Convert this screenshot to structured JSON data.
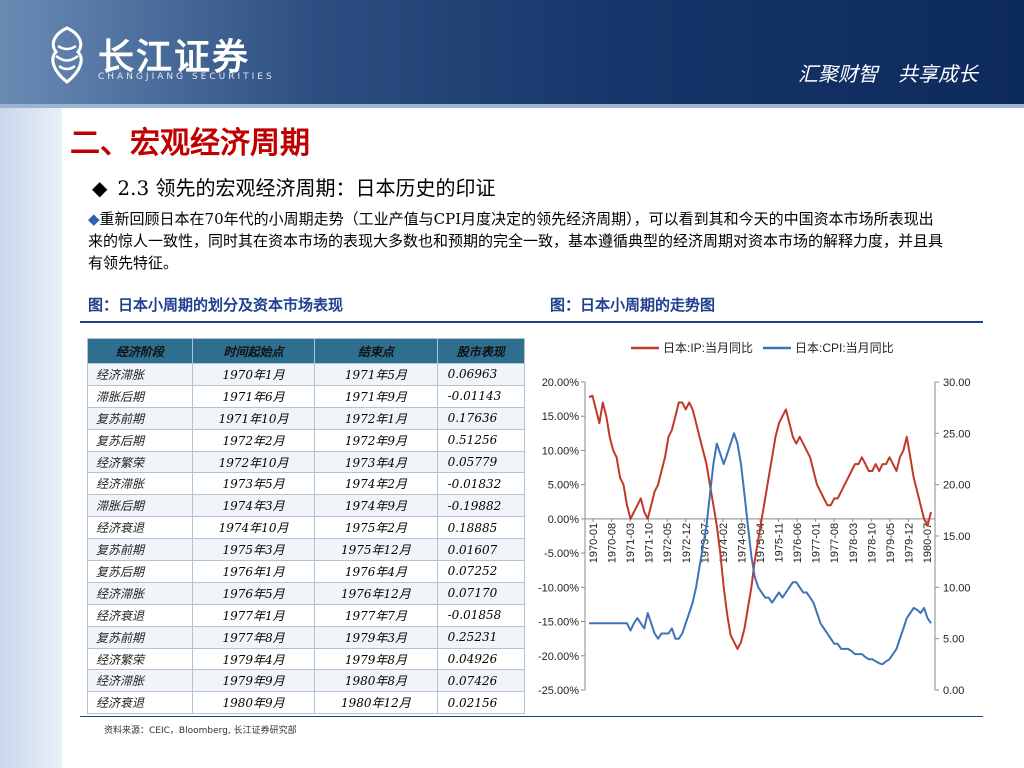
{
  "header": {
    "logo_text": "长江证券",
    "logo_sub": "CHANGJIANG SECURITIES",
    "slogan": "汇聚财智　共享成长"
  },
  "section_title": "二、宏观经济周期",
  "subtitle": {
    "bullet": "◆",
    "text": "2.3 领先的宏观经济周期：日本历史的印证"
  },
  "paragraph": {
    "bullet": "◆",
    "text": "重新回顾日本在70年代的小周期走势（工业产值与CPI月度决定的领先经济周期），可以看到其和今天的中国资本市场所表现出来的惊人一致性，同时其在资本市场的表现大多数也和预期的完全一致，基本遵循典型的经济周期对资本市场的解释力度，并且具有领先特征。"
  },
  "captions": {
    "left": "图：日本小周期的划分及资本市场表现",
    "right": "图：日本小周期的走势图"
  },
  "table": {
    "headers": [
      "经济阶段",
      "时间起始点",
      "结束点",
      "股市表现"
    ],
    "rows": [
      [
        "经济滞胀",
        "1970年1月",
        "1971年5月",
        "0.06963"
      ],
      [
        "滞胀后期",
        "1971年6月",
        "1971年9月",
        "-0.01143"
      ],
      [
        "复苏前期",
        "1971年10月",
        "1972年1月",
        "0.17636"
      ],
      [
        "复苏后期",
        "1972年2月",
        "1972年9月",
        "0.51256"
      ],
      [
        "经济繁荣",
        "1972年10月",
        "1973年4月",
        "0.05779"
      ],
      [
        "经济滞胀",
        "1973年5月",
        "1974年2月",
        "-0.01832"
      ],
      [
        "滞胀后期",
        "1974年3月",
        "1974年9月",
        "-0.19882"
      ],
      [
        "经济衰退",
        "1974年10月",
        "1975年2月",
        "0.18885"
      ],
      [
        "复苏前期",
        "1975年3月",
        "1975年12月",
        "0.01607"
      ],
      [
        "复苏后期",
        "1976年1月",
        "1976年4月",
        "0.07252"
      ],
      [
        "经济滞胀",
        "1976年5月",
        "1976年12月",
        "0.07170"
      ],
      [
        "经济衰退",
        "1977年1月",
        "1977年7月",
        "-0.01858"
      ],
      [
        "复苏前期",
        "1977年8月",
        "1979年3月",
        "0.25231"
      ],
      [
        "经济繁荣",
        "1979年4月",
        "1979年8月",
        "0.04926"
      ],
      [
        "经济滞胀",
        "1979年9月",
        "1980年8月",
        "0.07426"
      ],
      [
        "经济衰退",
        "1980年9月",
        "1980年12月",
        "0.02156"
      ]
    ]
  },
  "source": "资料来源：CEIC，Bloomberg, 长江证券研究部",
  "chart_data": {
    "type": "line",
    "title": "",
    "series": [
      {
        "name": "日本:IP:当月同比",
        "axis": "left",
        "color": "#c0392b",
        "values": [
          17.8,
          18,
          16,
          14,
          17,
          15,
          12,
          10,
          9,
          6,
          5,
          2,
          0,
          1,
          2,
          3,
          1,
          0,
          2,
          4,
          5,
          7,
          9,
          12,
          13,
          15,
          17,
          17,
          16,
          17,
          16,
          14,
          12,
          10,
          8,
          5,
          2,
          -1,
          -5,
          -10,
          -14,
          -17,
          -18,
          -19,
          -18,
          -16,
          -13,
          -10,
          -6,
          -3,
          0,
          3,
          6,
          9,
          12,
          14,
          15,
          16,
          14,
          12,
          11,
          12,
          11,
          10,
          9,
          7,
          5,
          4,
          3,
          2,
          2,
          3,
          3,
          4,
          5,
          6,
          7,
          8,
          8,
          9,
          8,
          7,
          7,
          8,
          7,
          8,
          8,
          9,
          8,
          7,
          9,
          10,
          12,
          9,
          6,
          4,
          2,
          0,
          -1,
          1
        ]
      },
      {
        "name": "日本:CPI:当月同比",
        "axis": "right",
        "color": "#3f73b8",
        "values": [
          6.5,
          6.5,
          6.5,
          6.5,
          6.5,
          6.5,
          6.5,
          6.5,
          6.5,
          6.5,
          6.5,
          6.5,
          5.8,
          6.5,
          7,
          6.5,
          6,
          7.5,
          6.5,
          5.5,
          5,
          5.5,
          5.5,
          5.5,
          6,
          5,
          5,
          5.5,
          6.5,
          7.5,
          8.5,
          10,
          12,
          14,
          16,
          19,
          22,
          24,
          23,
          22,
          23,
          24,
          25,
          24,
          22,
          19,
          16,
          13,
          11,
          10,
          9.5,
          9,
          9,
          8.5,
          9,
          9.5,
          9,
          9.5,
          10,
          10.5,
          10.5,
          10,
          9.5,
          9.5,
          9,
          8.5,
          7.5,
          6.5,
          6,
          5.5,
          5,
          4.5,
          4.5,
          4,
          4,
          4,
          3.8,
          3.5,
          3.5,
          3.5,
          3.2,
          3,
          3,
          2.8,
          2.6,
          2.5,
          2.8,
          3,
          3.5,
          4,
          5,
          6,
          7,
          7.5,
          8,
          7.8,
          7.5,
          8,
          7,
          6.5
        ]
      }
    ],
    "x_labels": [
      "1970-01",
      "1970-08",
      "1971-03",
      "1971-10",
      "1972-05",
      "1972-12",
      "1973-07",
      "1974-02",
      "1974-09",
      "1975-04",
      "1975-11",
      "1976-06",
      "1977-01",
      "1977-08",
      "1978-03",
      "1978-10",
      "1979-05",
      "1979-12",
      "1980-07"
    ],
    "y_left": {
      "min": -25,
      "max": 20,
      "step": 5,
      "labels": [
        "20.00%",
        "15.00%",
        "10.00%",
        "5.00%",
        "0.00%",
        "-5.00%",
        "-10.00%",
        "-15.00%",
        "-20.00%",
        "-25.00%"
      ]
    },
    "y_right": {
      "min": 0,
      "max": 30,
      "step": 5,
      "labels": [
        "30.00",
        "25.00",
        "20.00",
        "15.00",
        "10.00",
        "5.00",
        "0.00"
      ]
    },
    "legend": "top",
    "grid": false
  }
}
